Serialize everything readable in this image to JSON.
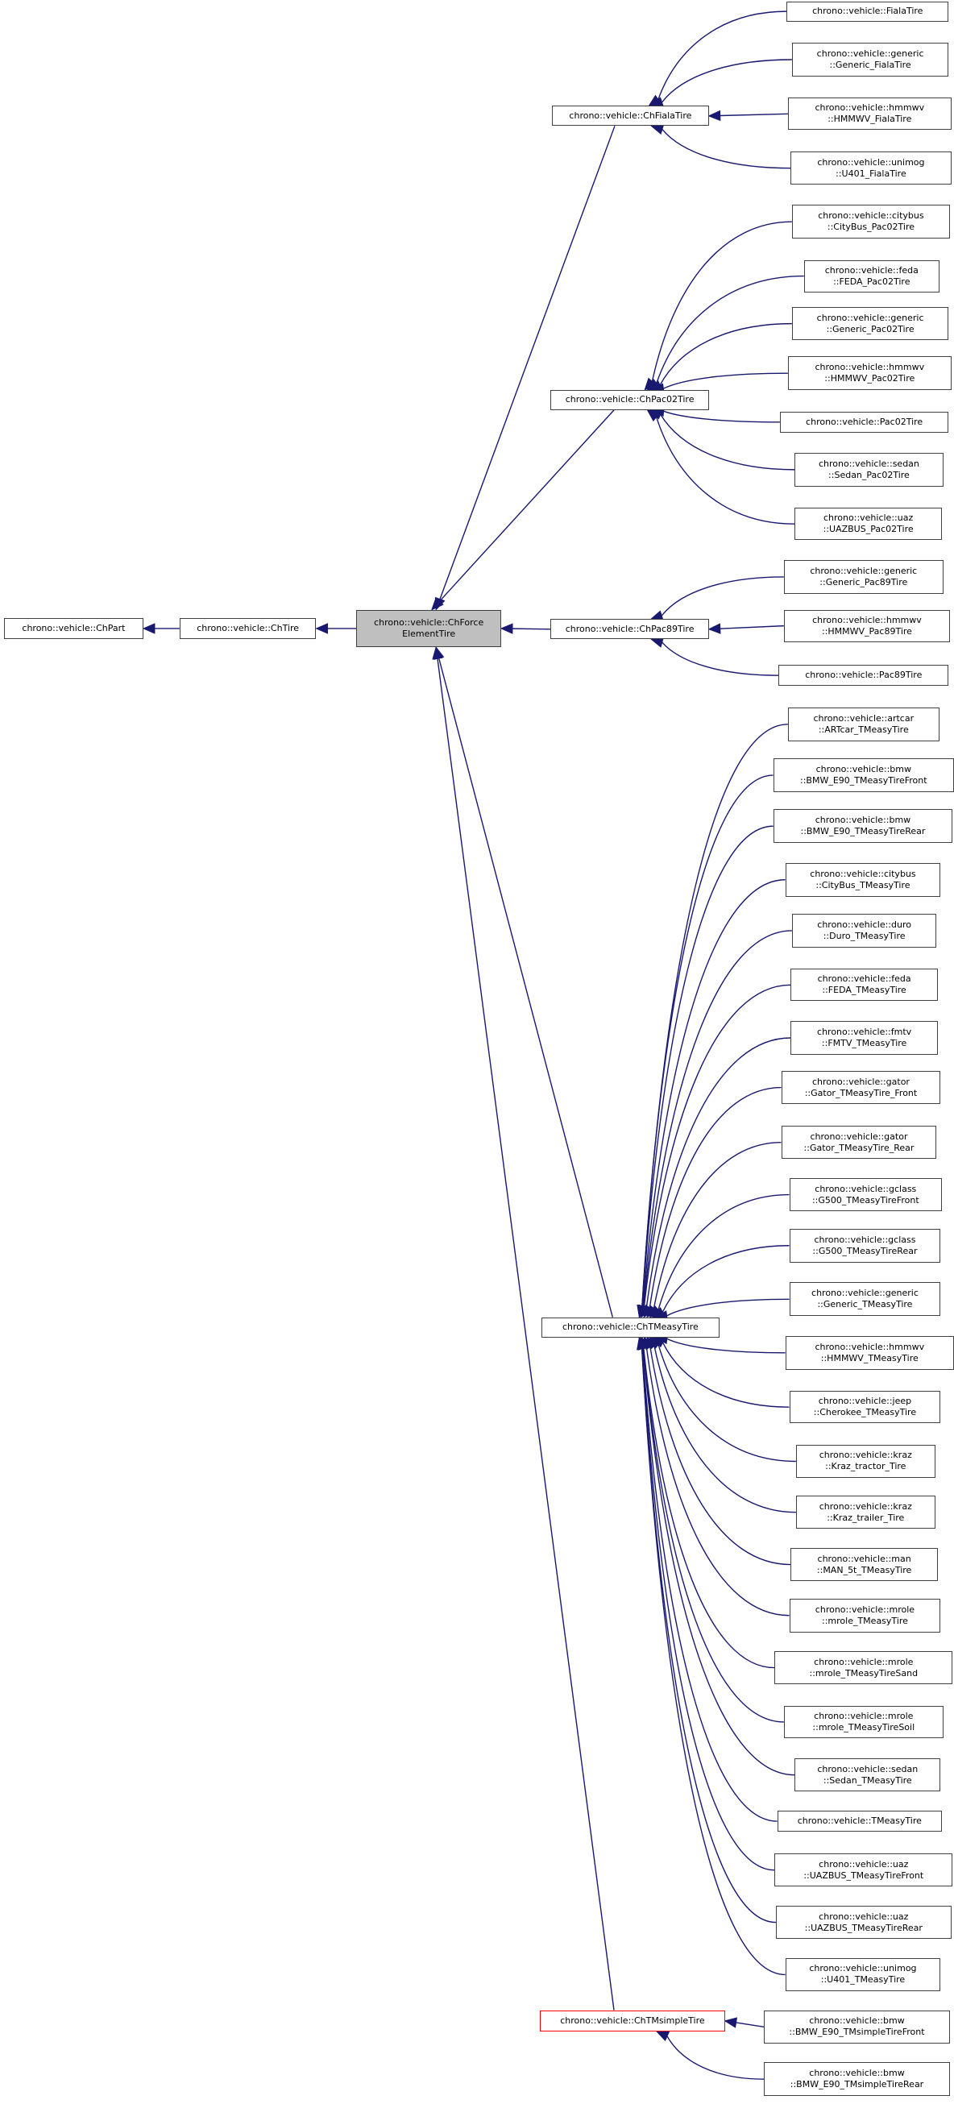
{
  "colors": {
    "edge": "#191970",
    "current_fill": "#bfbfbf",
    "truncated_border": "#ff0000",
    "border": "#404040"
  },
  "nodes": [
    {
      "id": "n0",
      "lines": [
        "chrono::vehicle::ChPart"
      ],
      "parent": null
    },
    {
      "id": "n1",
      "lines": [
        "chrono::vehicle::ChTire"
      ],
      "parent": "n0"
    },
    {
      "id": "n2",
      "lines": [
        "chrono::vehicle::ChForce",
        "ElementTire"
      ],
      "parent": "n1",
      "current": true
    },
    {
      "id": "n3",
      "lines": [
        "chrono::vehicle::ChFialaTire"
      ],
      "parent": "n2"
    },
    {
      "id": "n4",
      "lines": [
        "chrono::vehicle::ChPac02Tire"
      ],
      "parent": "n2"
    },
    {
      "id": "n5",
      "lines": [
        "chrono::vehicle::ChPac89Tire"
      ],
      "parent": "n2"
    },
    {
      "id": "n6",
      "lines": [
        "chrono::vehicle::ChTMeasyTire"
      ],
      "parent": "n2"
    },
    {
      "id": "n7",
      "lines": [
        "chrono::vehicle::ChTMsimpleTire"
      ],
      "parent": "n2",
      "truncated": true
    },
    {
      "id": "f1",
      "lines": [
        "chrono::vehicle::FialaTire"
      ],
      "parent": "n3"
    },
    {
      "id": "f2",
      "lines": [
        "chrono::vehicle::generic",
        "::Generic_FialaTire"
      ],
      "parent": "n3"
    },
    {
      "id": "f3",
      "lines": [
        "chrono::vehicle::hmmwv",
        "::HMMWV_FialaTire"
      ],
      "parent": "n3"
    },
    {
      "id": "f4",
      "lines": [
        "chrono::vehicle::unimog",
        "::U401_FialaTire"
      ],
      "parent": "n3"
    },
    {
      "id": "p1",
      "lines": [
        "chrono::vehicle::citybus",
        "::CityBus_Pac02Tire"
      ],
      "parent": "n4"
    },
    {
      "id": "p2",
      "lines": [
        "chrono::vehicle::feda",
        "::FEDA_Pac02Tire"
      ],
      "parent": "n4"
    },
    {
      "id": "p3",
      "lines": [
        "chrono::vehicle::generic",
        "::Generic_Pac02Tire"
      ],
      "parent": "n4"
    },
    {
      "id": "p4",
      "lines": [
        "chrono::vehicle::hmmwv",
        "::HMMWV_Pac02Tire"
      ],
      "parent": "n4"
    },
    {
      "id": "p5",
      "lines": [
        "chrono::vehicle::Pac02Tire"
      ],
      "parent": "n4"
    },
    {
      "id": "p6",
      "lines": [
        "chrono::vehicle::sedan",
        "::Sedan_Pac02Tire"
      ],
      "parent": "n4"
    },
    {
      "id": "p7",
      "lines": [
        "chrono::vehicle::uaz",
        "::UAZBUS_Pac02Tire"
      ],
      "parent": "n4"
    },
    {
      "id": "q1",
      "lines": [
        "chrono::vehicle::generic",
        "::Generic_Pac89Tire"
      ],
      "parent": "n5"
    },
    {
      "id": "q2",
      "lines": [
        "chrono::vehicle::hmmwv",
        "::HMMWV_Pac89Tire"
      ],
      "parent": "n5"
    },
    {
      "id": "q3",
      "lines": [
        "chrono::vehicle::Pac89Tire"
      ],
      "parent": "n5"
    },
    {
      "id": "t1",
      "lines": [
        "chrono::vehicle::artcar",
        "::ARTcar_TMeasyTire"
      ],
      "parent": "n6"
    },
    {
      "id": "t2",
      "lines": [
        "chrono::vehicle::bmw",
        "::BMW_E90_TMeasyTireFront"
      ],
      "parent": "n6"
    },
    {
      "id": "t3",
      "lines": [
        "chrono::vehicle::bmw",
        "::BMW_E90_TMeasyTireRear"
      ],
      "parent": "n6"
    },
    {
      "id": "t4",
      "lines": [
        "chrono::vehicle::citybus",
        "::CityBus_TMeasyTire"
      ],
      "parent": "n6"
    },
    {
      "id": "t5",
      "lines": [
        "chrono::vehicle::duro",
        "::Duro_TMeasyTire"
      ],
      "parent": "n6"
    },
    {
      "id": "t6",
      "lines": [
        "chrono::vehicle::feda",
        "::FEDA_TMeasyTire"
      ],
      "parent": "n6"
    },
    {
      "id": "t7",
      "lines": [
        "chrono::vehicle::fmtv",
        "::FMTV_TMeasyTire"
      ],
      "parent": "n6"
    },
    {
      "id": "t8",
      "lines": [
        "chrono::vehicle::gator",
        "::Gator_TMeasyTire_Front"
      ],
      "parent": "n6"
    },
    {
      "id": "t9",
      "lines": [
        "chrono::vehicle::gator",
        "::Gator_TMeasyTire_Rear"
      ],
      "parent": "n6"
    },
    {
      "id": "t10",
      "lines": [
        "chrono::vehicle::gclass",
        "::G500_TMeasyTireFront"
      ],
      "parent": "n6"
    },
    {
      "id": "t11",
      "lines": [
        "chrono::vehicle::gclass",
        "::G500_TMeasyTireRear"
      ],
      "parent": "n6"
    },
    {
      "id": "t12",
      "lines": [
        "chrono::vehicle::generic",
        "::Generic_TMeasyTire"
      ],
      "parent": "n6"
    },
    {
      "id": "t13",
      "lines": [
        "chrono::vehicle::hmmwv",
        "::HMMWV_TMeasyTire"
      ],
      "parent": "n6"
    },
    {
      "id": "t14",
      "lines": [
        "chrono::vehicle::jeep",
        "::Cherokee_TMeasyTire"
      ],
      "parent": "n6"
    },
    {
      "id": "t15",
      "lines": [
        "chrono::vehicle::kraz",
        "::Kraz_tractor_Tire"
      ],
      "parent": "n6"
    },
    {
      "id": "t16",
      "lines": [
        "chrono::vehicle::kraz",
        "::Kraz_trailer_Tire"
      ],
      "parent": "n6"
    },
    {
      "id": "t17",
      "lines": [
        "chrono::vehicle::man",
        "::MAN_5t_TMeasyTire"
      ],
      "parent": "n6"
    },
    {
      "id": "t18",
      "lines": [
        "chrono::vehicle::mrole",
        "::mrole_TMeasyTire"
      ],
      "parent": "n6"
    },
    {
      "id": "t19",
      "lines": [
        "chrono::vehicle::mrole",
        "::mrole_TMeasyTireSand"
      ],
      "parent": "n6"
    },
    {
      "id": "t20",
      "lines": [
        "chrono::vehicle::mrole",
        "::mrole_TMeasyTireSoil"
      ],
      "parent": "n6"
    },
    {
      "id": "t21",
      "lines": [
        "chrono::vehicle::sedan",
        "::Sedan_TMeasyTire"
      ],
      "parent": "n6"
    },
    {
      "id": "t22",
      "lines": [
        "chrono::vehicle::TMeasyTire"
      ],
      "parent": "n6"
    },
    {
      "id": "t23",
      "lines": [
        "chrono::vehicle::uaz",
        "::UAZBUS_TMeasyTireFront"
      ],
      "parent": "n6"
    },
    {
      "id": "t24",
      "lines": [
        "chrono::vehicle::uaz",
        "::UAZBUS_TMeasyTireRear"
      ],
      "parent": "n6"
    },
    {
      "id": "t25",
      "lines": [
        "chrono::vehicle::unimog",
        "::U401_TMeasyTire"
      ],
      "parent": "n6"
    },
    {
      "id": "s1",
      "lines": [
        "chrono::vehicle::bmw",
        "::BMW_E90_TMsimpleTireFront"
      ],
      "parent": "n7"
    },
    {
      "id": "s2",
      "lines": [
        "chrono::vehicle::bmw",
        "::BMW_E90_TMsimpleTireRear"
      ],
      "parent": "n7"
    }
  ]
}
